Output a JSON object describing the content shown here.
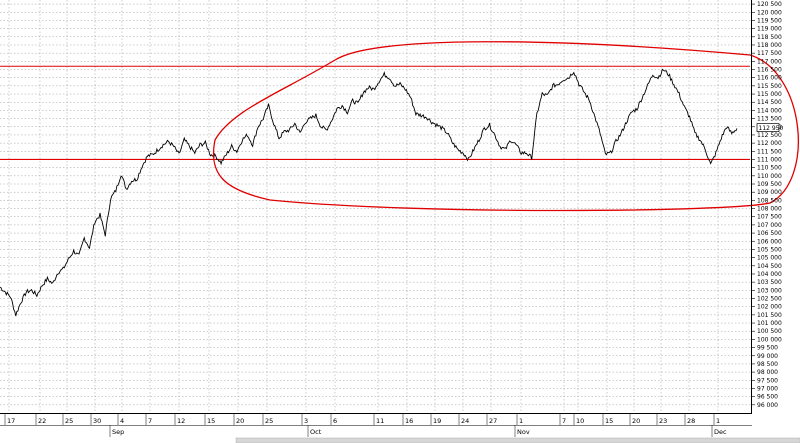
{
  "chart_data": {
    "type": "line",
    "title": "",
    "xlabel": "",
    "ylabel": "",
    "ylim": [
      95500,
      120750
    ],
    "y_tick_step": 500,
    "grid": true,
    "current_value": 112950,
    "current_value_label": "112 950",
    "x_day_labels": [
      "17",
      "22",
      "25",
      "30",
      "4",
      "7",
      "12",
      "15",
      "20",
      "25",
      "3",
      "6",
      "11",
      "16",
      "19",
      "24",
      "27",
      "1",
      "7",
      "10",
      "15",
      "20",
      "23",
      "28",
      "1"
    ],
    "x_month_labels": [
      "Sep",
      "Oct",
      "Nov",
      "Dec"
    ],
    "horizontal_lines": [
      116700,
      111000
    ],
    "colors": {
      "price": "#000000",
      "annotation": "#e00000",
      "grid": "#9a9a9a"
    },
    "series": [
      {
        "values": [
          103200,
          102900,
          102600,
          101500,
          102300,
          102900,
          103000,
          102700,
          103300,
          103700,
          103400,
          104100,
          104300,
          104900,
          105400,
          105100,
          106200,
          105600,
          107200,
          107600,
          106400,
          108600,
          109100,
          110100,
          109200,
          109700,
          109800,
          110600,
          111200,
          111300,
          111600,
          111900,
          112100,
          111800,
          111300,
          112200,
          111800,
          111400,
          111900,
          112000,
          111300,
          111200,
          110800,
          111300,
          111800,
          111500,
          112200,
          112500,
          111900,
          113000,
          113500,
          114300,
          113200,
          112300,
          112700,
          112800,
          113200,
          112600,
          113300,
          113500,
          113700,
          113000,
          112800,
          113400,
          114100,
          114300,
          113900,
          114600,
          114400,
          115100,
          115400,
          115300,
          115800,
          116200,
          116000,
          115500,
          115600,
          115300,
          114800,
          113800,
          113700,
          113600,
          113300,
          113100,
          112900,
          112600,
          112000,
          111600,
          111400,
          111000,
          111600,
          112200,
          112900,
          113100,
          112500,
          111800,
          111600,
          112200,
          111900,
          111400,
          111400,
          111100,
          113800,
          115000,
          114900,
          115500,
          115600,
          115900,
          116000,
          116400,
          115600,
          115100,
          114600,
          113600,
          112600,
          111300,
          111400,
          112100,
          112600,
          113300,
          113900,
          114100,
          114800,
          115500,
          116200,
          116000,
          116500,
          116200,
          115600,
          115000,
          114200,
          113600,
          112600,
          112200,
          111600,
          110700,
          111400,
          112300,
          113000,
          112600,
          112900
        ]
      }
    ]
  }
}
